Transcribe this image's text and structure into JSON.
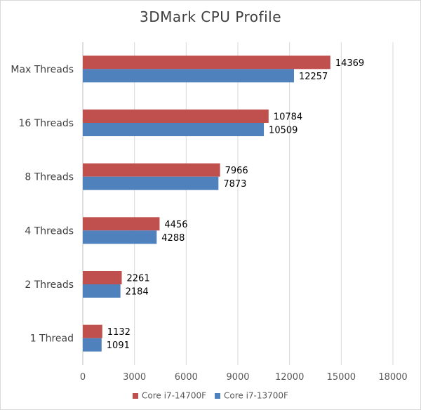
{
  "chart_data": {
    "type": "bar",
    "orientation": "horizontal",
    "title": "3DMark CPU Profile",
    "xlabel": "",
    "ylabel": "",
    "xlim": [
      0,
      18000
    ],
    "xticks": [
      0,
      3000,
      6000,
      9000,
      12000,
      15000,
      18000
    ],
    "grid": true,
    "legend_position": "bottom",
    "categories": [
      "Max Threads",
      "16 Threads",
      "8 Threads",
      "4 Threads",
      "2 Threads",
      "1 Thread"
    ],
    "series": [
      {
        "name": "Core i7-14700F",
        "color": "#c0504d",
        "values": [
          14369,
          10784,
          7966,
          4456,
          2261,
          1132
        ]
      },
      {
        "name": "Core i7-13700F",
        "color": "#4f81bd",
        "values": [
          12257,
          10509,
          7873,
          4288,
          2184,
          1091
        ]
      }
    ]
  }
}
